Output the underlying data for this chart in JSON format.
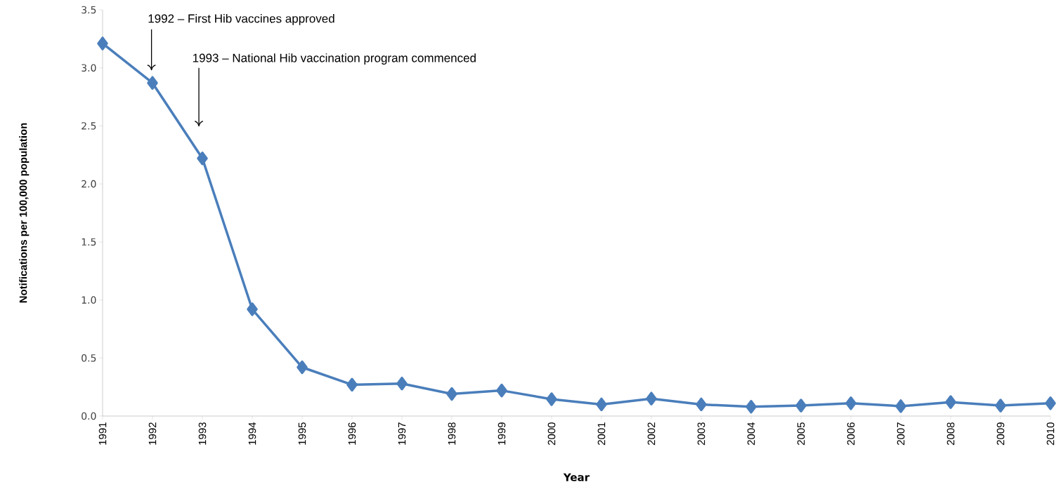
{
  "chart_data": {
    "type": "line",
    "xlabel": "Year",
    "ylabel": "Notifications per 100,000 population",
    "categories": [
      "1991",
      "1992",
      "1993",
      "1994",
      "1995",
      "1996",
      "1997",
      "1998",
      "1999",
      "2000",
      "2001",
      "2002",
      "2003",
      "2004",
      "2005",
      "2006",
      "2007",
      "2008",
      "2009",
      "2010"
    ],
    "series": [
      {
        "color": "#4a7ebb",
        "values": [
          3.21,
          2.87,
          2.22,
          0.92,
          0.42,
          0.27,
          0.28,
          0.19,
          0.22,
          0.145,
          0.1,
          0.15,
          0.1,
          0.08,
          0.09,
          0.11,
          0.085,
          0.12,
          0.09,
          0.11
        ]
      }
    ],
    "ylim": [
      0,
      3.5
    ],
    "yticks": [
      {
        "value": 0,
        "label": "0.0"
      },
      {
        "value": 0.5,
        "label": "0.5"
      },
      {
        "value": 1,
        "label": "1.0"
      },
      {
        "value": 1.5,
        "label": "1.5"
      },
      {
        "value": 2,
        "label": "2.0"
      },
      {
        "value": 2.5,
        "label": "2.5"
      },
      {
        "value": 3,
        "label": "3.0"
      },
      {
        "value": 3.5,
        "label": "3.5"
      }
    ],
    "annotations": [
      "1992 – First Hib vaccines approved",
      "1993 – National Hib vaccination program commenced"
    ],
    "marker": "diamond",
    "line_style": "solid",
    "grid": false
  }
}
